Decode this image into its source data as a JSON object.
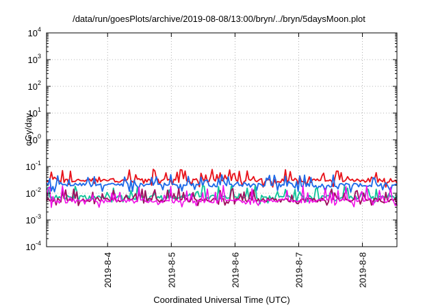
{
  "chart_data": {
    "type": "line",
    "title": "/data/run/goesPlots/archive/2019-08-08/13:00/bryn/../bryn/5daysMoon.plot",
    "xlabel": "Coordinated Universal Time (UTC)",
    "ylabel": "cGy/day",
    "x_range": [
      "2019-08-03T01:00",
      "2019-08-08T13:00"
    ],
    "x_ticks": [
      "2019-8-4",
      "2019-8-5",
      "2019-8-6",
      "2019-8-7",
      "2019-8-8"
    ],
    "y_scale": "log",
    "ylim": [
      0.0001,
      10000
    ],
    "y_ticks": [
      {
        "base": "10",
        "exp": "-4"
      },
      {
        "base": "10",
        "exp": "-3"
      },
      {
        "base": "10",
        "exp": "-2"
      },
      {
        "base": "10",
        "exp": "-1"
      },
      {
        "base": "10",
        "exp": "0"
      },
      {
        "base": "10",
        "exp": "1"
      },
      {
        "base": "10",
        "exp": "2"
      },
      {
        "base": "10",
        "exp": "3"
      },
      {
        "base": "10",
        "exp": "4"
      }
    ],
    "grid": true,
    "legend": "none",
    "series": [
      {
        "color": "#e8141c",
        "approx_level": 0.03,
        "spike_max": 0.08
      },
      {
        "color": "#1f6be8",
        "approx_level": 0.02,
        "spike_max": 0.05
      },
      {
        "color": "#13c49a",
        "approx_level": 0.007,
        "spike_max": 0.02
      },
      {
        "color": "#a0105f",
        "approx_level": 0.0055,
        "spike_max": 0.015
      },
      {
        "color": "#f00fe6",
        "approx_level": 0.005,
        "spike_max": 0.02
      }
    ]
  }
}
